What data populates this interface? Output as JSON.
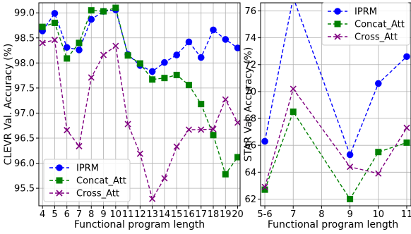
{
  "chart_data": [
    {
      "type": "line",
      "xlabel": "Functional program length",
      "ylabel": "CLEVR Val. Accuracy (%)",
      "x": [
        4,
        5,
        6,
        7,
        8,
        9,
        10,
        11,
        12,
        13,
        14,
        15,
        16,
        17,
        18,
        19,
        20
      ],
      "xticks": [
        "4",
        "5",
        "6",
        "7",
        "8",
        "9",
        "10",
        "11",
        "12",
        "13",
        "14",
        "15",
        "16",
        "17",
        "18",
        "19",
        "20"
      ],
      "xlim": [
        3.7,
        20.2
      ],
      "ylim": [
        95.15,
        99.2
      ],
      "yticks": [
        "95.5",
        "96.0",
        "96.5",
        "97.0",
        "97.5",
        "98.0",
        "98.5",
        "99.0"
      ],
      "grid": true,
      "legend_position": "lower-left",
      "series": [
        {
          "name": "IPRM",
          "color": "#0000ff",
          "marker": "circle",
          "values": [
            98.64,
            98.99,
            98.31,
            98.26,
            98.87,
            99.03,
            99.06,
            98.17,
            97.95,
            97.83,
            98.01,
            98.16,
            98.42,
            98.11,
            98.66,
            98.47,
            98.3
          ]
        },
        {
          "name": "Concat_Att",
          "color": "#008000",
          "marker": "square",
          "values": [
            98.72,
            98.8,
            98.09,
            98.4,
            99.05,
            99.03,
            99.1,
            98.15,
            97.99,
            97.67,
            97.7,
            97.76,
            97.56,
            97.18,
            96.56,
            95.78,
            96.12
          ]
        },
        {
          "name": "Cross_Att",
          "color": "#800080",
          "marker": "x",
          "values": [
            98.4,
            98.46,
            96.66,
            96.34,
            97.71,
            98.16,
            98.34,
            96.78,
            96.19,
            95.29,
            95.7,
            96.33,
            96.67,
            96.67,
            96.68,
            97.27,
            96.81
          ]
        }
      ]
    },
    {
      "type": "line",
      "xlabel": "Functional program length",
      "ylabel": "STAR Val. Accuracy (%)",
      "x": [
        6,
        7,
        9,
        10,
        11
      ],
      "xticks": [
        "5-6",
        "7",
        "8",
        "9",
        "10",
        "11"
      ],
      "xtick_values": [
        6,
        7,
        8,
        9,
        10,
        11
      ],
      "xlim": [
        5.85,
        11.15
      ],
      "ylim": [
        61.5,
        76.6
      ],
      "yticks": [
        "62",
        "64",
        "66",
        "68",
        "70",
        "72",
        "74",
        "76"
      ],
      "grid": true,
      "legend_position": "top-right",
      "series": [
        {
          "name": "IPRM",
          "color": "#0000ff",
          "marker": "circle",
          "values": [
            66.3,
            77.0,
            65.3,
            70.6,
            72.6
          ]
        },
        {
          "name": "Concat_Att",
          "color": "#008000",
          "marker": "square",
          "values": [
            62.7,
            68.5,
            62.0,
            65.5,
            66.2
          ]
        },
        {
          "name": "Cross_Att",
          "color": "#800080",
          "marker": "x",
          "values": [
            62.9,
            70.2,
            64.4,
            63.9,
            67.3
          ]
        }
      ]
    }
  ]
}
